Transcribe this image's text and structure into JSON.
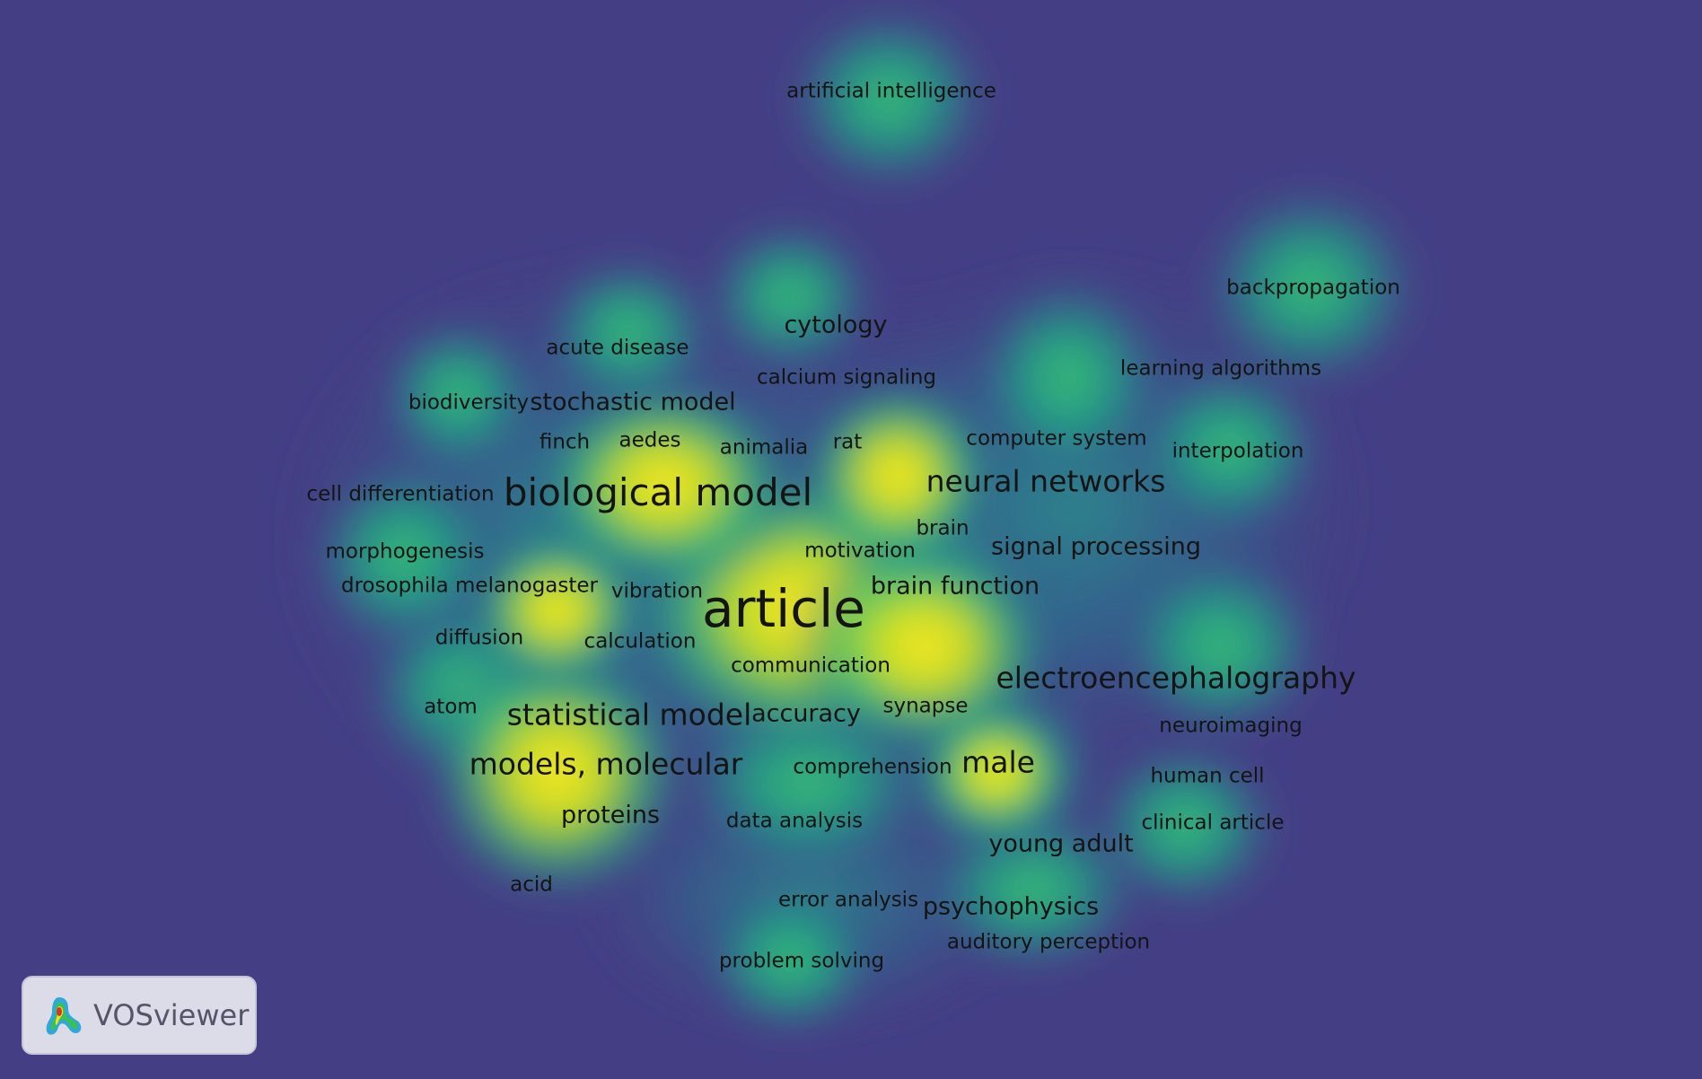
{
  "logo": {
    "text": "VOSviewer",
    "icon": "vosviewer-logo-icon"
  },
  "colors": {
    "background": "#443f85",
    "density_low": "#2a7f8e",
    "density_mid": "#22a884",
    "density_high": "#fde725",
    "label": "#141414"
  },
  "terms": [
    {
      "id": "article",
      "label": "article",
      "size": 5
    },
    {
      "id": "biological-model",
      "label": "biological model",
      "size": 4
    },
    {
      "id": "neural-networks",
      "label": "neural networks",
      "size": 3
    },
    {
      "id": "models-molecular",
      "label": "models, molecular",
      "size": 3
    },
    {
      "id": "statistical-model",
      "label": "statistical model",
      "size": 3
    },
    {
      "id": "electroencephalography",
      "label": "electroencephalography",
      "size": 3
    },
    {
      "id": "male",
      "label": "male",
      "size": 3
    },
    {
      "id": "brain-function",
      "label": "brain function",
      "size": 2
    },
    {
      "id": "signal-processing",
      "label": "signal processing",
      "size": 2
    },
    {
      "id": "young-adult",
      "label": "young adult",
      "size": 2
    },
    {
      "id": "cytology",
      "label": "cytology",
      "size": 2
    },
    {
      "id": "stochastic-model",
      "label": "stochastic model",
      "size": 2
    },
    {
      "id": "proteins",
      "label": "proteins",
      "size": 2
    },
    {
      "id": "psychophysics",
      "label": "psychophysics",
      "size": 2
    },
    {
      "id": "accuracy",
      "label": "accuracy",
      "size": 2
    },
    {
      "id": "artificial-intelligence",
      "label": "artificial intelligence",
      "size": 1
    },
    {
      "id": "backpropagation",
      "label": "backpropagation",
      "size": 1
    },
    {
      "id": "learning-algorithms",
      "label": "learning algorithms",
      "size": 1
    },
    {
      "id": "acute-disease",
      "label": "acute disease",
      "size": 1
    },
    {
      "id": "calcium-signaling",
      "label": "calcium signaling",
      "size": 1
    },
    {
      "id": "biodiversity",
      "label": "biodiversity",
      "size": 1
    },
    {
      "id": "finch",
      "label": "finch",
      "size": 1
    },
    {
      "id": "aedes",
      "label": "aedes",
      "size": 1
    },
    {
      "id": "animalia",
      "label": "animalia",
      "size": 1
    },
    {
      "id": "rat",
      "label": "rat",
      "size": 1
    },
    {
      "id": "computer-system",
      "label": "computer system",
      "size": 1
    },
    {
      "id": "interpolation",
      "label": "interpolation",
      "size": 1
    },
    {
      "id": "cell-differentiation",
      "label": "cell differentiation",
      "size": 1
    },
    {
      "id": "brain",
      "label": "brain",
      "size": 1
    },
    {
      "id": "morphogenesis",
      "label": "morphogenesis",
      "size": 1
    },
    {
      "id": "motivation",
      "label": "motivation",
      "size": 1
    },
    {
      "id": "drosophila-melanogaster",
      "label": "drosophila melanogaster",
      "size": 1
    },
    {
      "id": "vibration",
      "label": "vibration",
      "size": 1
    },
    {
      "id": "diffusion",
      "label": "diffusion",
      "size": 1
    },
    {
      "id": "calculation",
      "label": "calculation",
      "size": 1
    },
    {
      "id": "communication",
      "label": "communication",
      "size": 1
    },
    {
      "id": "atom",
      "label": "atom",
      "size": 1
    },
    {
      "id": "synapse",
      "label": "synapse",
      "size": 1
    },
    {
      "id": "neuroimaging",
      "label": "neuroimaging",
      "size": 1
    },
    {
      "id": "comprehension",
      "label": "comprehension",
      "size": 1
    },
    {
      "id": "human-cell",
      "label": "human cell",
      "size": 1
    },
    {
      "id": "data-analysis",
      "label": "data analysis",
      "size": 1
    },
    {
      "id": "clinical-article",
      "label": "clinical article",
      "size": 1
    },
    {
      "id": "acid",
      "label": "acid",
      "size": 1
    },
    {
      "id": "error-analysis",
      "label": "error analysis",
      "size": 1
    },
    {
      "id": "auditory-perception",
      "label": "auditory perception",
      "size": 1
    },
    {
      "id": "problem-solving",
      "label": "problem solving",
      "size": 1
    }
  ]
}
